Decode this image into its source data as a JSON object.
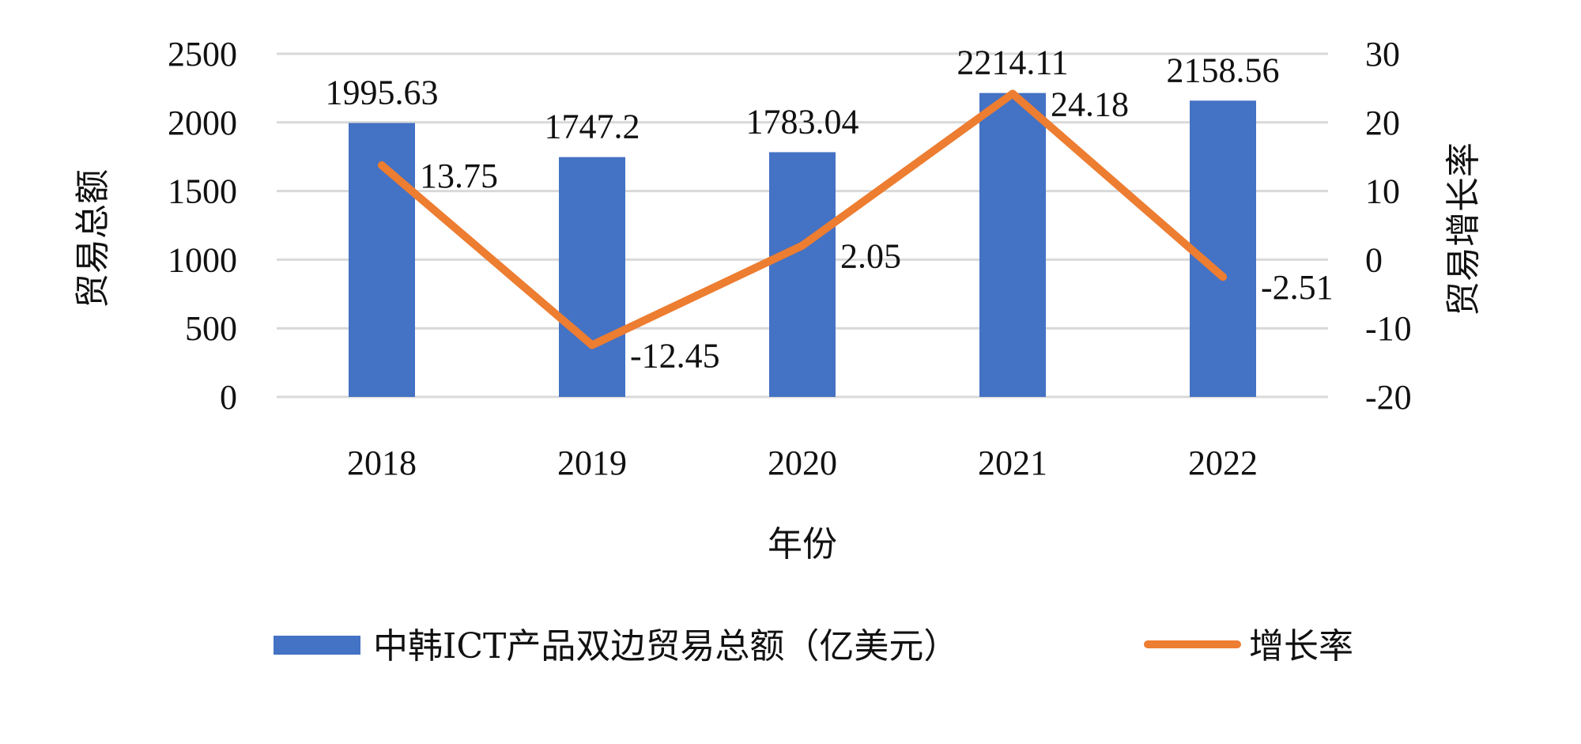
{
  "chart_data": {
    "type": "bar",
    "categories": [
      "2018",
      "2019",
      "2020",
      "2021",
      "2022"
    ],
    "series": [
      {
        "name": "中韩ICT产品双边贸易总额（亿美元）",
        "type": "bar",
        "axis": "left",
        "values": [
          1995.63,
          1747.2,
          1783.04,
          2214.11,
          2158.56
        ],
        "labels": [
          "1995.63",
          "1747.2",
          "1783.04",
          "2214.11",
          "2158.56"
        ],
        "color": "#4472C4"
      },
      {
        "name": "增长率",
        "type": "line",
        "axis": "right",
        "values": [
          13.75,
          -12.45,
          2.05,
          24.18,
          -2.51
        ],
        "labels": [
          "13.75",
          "-12.45",
          "2.05",
          "24.18",
          "-2.51"
        ],
        "color": "#ED7D31"
      }
    ],
    "xlabel": "年份",
    "ylabel": "贸易总额",
    "y2label": "贸易增长率",
    "ylim": [
      0,
      2500
    ],
    "y2lim": [
      -20,
      30
    ],
    "yticks": [
      "0",
      "500",
      "1000",
      "1500",
      "2000",
      "2500"
    ],
    "y2ticks": [
      "-20",
      "-10",
      "0",
      "10",
      "20",
      "30"
    ],
    "grid": true,
    "gridline_color": "#D9D9D9",
    "legend_position": "bottom"
  }
}
